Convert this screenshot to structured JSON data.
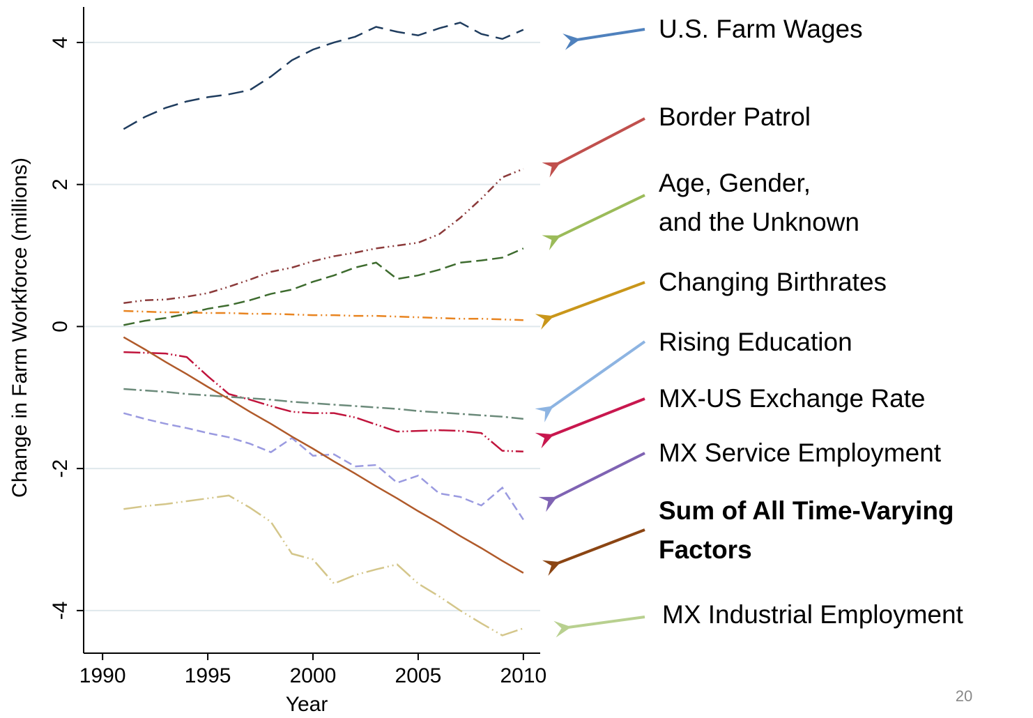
{
  "chart_data": {
    "type": "line",
    "xlabel": "Year",
    "ylabel": "Change in Farm Workforce (millions)",
    "x": [
      1991,
      1992,
      1993,
      1994,
      1995,
      1996,
      1997,
      1998,
      1999,
      2000,
      2001,
      2002,
      2003,
      2004,
      2005,
      2006,
      2007,
      2008,
      2009,
      2010
    ],
    "xlim": [
      1989.1,
      2010.8
    ],
    "xticks": [
      1990,
      1995,
      2000,
      2005,
      2010
    ],
    "ylim": [
      -4.6,
      4.5
    ],
    "yticks": [
      -4,
      -2,
      0,
      2,
      4
    ],
    "grid": true,
    "series": [
      {
        "color": "#1f3c5e",
        "dash": "22 10",
        "values": [
          2.78,
          2.95,
          3.08,
          3.17,
          3.23,
          3.27,
          3.33,
          3.52,
          3.75,
          3.9,
          4.0,
          4.08,
          4.22,
          4.15,
          4.1,
          4.2,
          4.28,
          4.12,
          4.05,
          4.18
        ]
      },
      {
        "color": "#8b3a3a",
        "dash": "12 5 2 5 2 5",
        "values": [
          0.33,
          0.37,
          0.38,
          0.42,
          0.47,
          0.56,
          0.66,
          0.77,
          0.83,
          0.92,
          0.99,
          1.04,
          1.1,
          1.14,
          1.18,
          1.3,
          1.53,
          1.8,
          2.1,
          2.22
        ]
      },
      {
        "color": "#3d6b2e",
        "dash": "16 7",
        "values": [
          0.02,
          0.08,
          0.12,
          0.18,
          0.25,
          0.3,
          0.37,
          0.46,
          0.52,
          0.63,
          0.72,
          0.83,
          0.9,
          0.67,
          0.72,
          0.8,
          0.9,
          0.93,
          0.97,
          1.1
        ]
      },
      {
        "color": "#e88420",
        "dash": "14 5 2 5 2 5",
        "values": [
          0.22,
          0.21,
          0.2,
          0.2,
          0.19,
          0.19,
          0.18,
          0.18,
          0.17,
          0.16,
          0.16,
          0.15,
          0.15,
          0.14,
          0.13,
          0.12,
          0.11,
          0.11,
          0.1,
          0.09
        ]
      },
      {
        "color": "#c0143c",
        "dash": "24 4 2 4 2 4",
        "values": [
          -0.36,
          -0.37,
          -0.38,
          -0.43,
          -0.7,
          -0.95,
          -1.03,
          -1.12,
          -1.2,
          -1.22,
          -1.22,
          -1.28,
          -1.38,
          -1.48,
          -1.47,
          -1.46,
          -1.47,
          -1.5,
          -1.75,
          -1.76
        ]
      },
      {
        "color": "#6b8a7a",
        "dash": "18 5 3 5",
        "values": [
          -0.88,
          -0.9,
          -0.92,
          -0.95,
          -0.97,
          -0.99,
          -1.01,
          -1.03,
          -1.06,
          -1.08,
          -1.1,
          -1.12,
          -1.14,
          -1.16,
          -1.19,
          -1.21,
          -1.23,
          -1.25,
          -1.27,
          -1.3
        ]
      },
      {
        "color": "#9a9ae0",
        "dash": "12 6",
        "values": [
          -1.22,
          -1.3,
          -1.37,
          -1.43,
          -1.5,
          -1.56,
          -1.65,
          -1.77,
          -1.57,
          -1.82,
          -1.8,
          -1.97,
          -1.95,
          -2.2,
          -2.1,
          -2.35,
          -2.4,
          -2.52,
          -2.27,
          -2.72
        ]
      },
      {
        "color": "#b05a2a",
        "dash": "",
        "values": [
          -0.15,
          -0.32,
          -0.5,
          -0.67,
          -0.85,
          -1.02,
          -1.2,
          -1.37,
          -1.55,
          -1.72,
          -1.9,
          -2.07,
          -2.25,
          -2.42,
          -2.6,
          -2.77,
          -2.95,
          -3.12,
          -3.3,
          -3.47
        ]
      },
      {
        "color": "#d4c68a",
        "dash": "26 5 2 5 2 5",
        "values": [
          -2.57,
          -2.53,
          -2.5,
          -2.46,
          -2.42,
          -2.38,
          -2.55,
          -2.75,
          -3.2,
          -3.28,
          -3.62,
          -3.5,
          -3.42,
          -3.35,
          -3.62,
          -3.8,
          -4.0,
          -4.18,
          -4.35,
          -4.25
        ]
      }
    ],
    "annotations": [
      {
        "lines": [
          "U.S. Farm Wages"
        ],
        "color": "#4f81bd"
      },
      {
        "lines": [
          "Border Patrol"
        ],
        "color": "#c0504d"
      },
      {
        "lines": [
          "Age, Gender,",
          "and the Unknown"
        ],
        "color": "#9bbb59"
      },
      {
        "lines": [
          "Changing Birthrates"
        ],
        "color": "#c9961a"
      },
      {
        "lines": [
          "Rising Education"
        ],
        "color": "#8db4e2"
      },
      {
        "lines": [
          "MX-US Exchange Rate"
        ],
        "color": "#c8174e"
      },
      {
        "lines": [
          "MX Service Employment"
        ],
        "color": "#7f63b3"
      },
      {
        "lines": [
          "Sum of All Time-Varying",
          "Factors"
        ],
        "color": "#8b4513",
        "bold": true
      },
      {
        "lines": [
          "MX Industrial Employment"
        ],
        "color": "#b8d08f"
      }
    ]
  },
  "page_number": "20"
}
